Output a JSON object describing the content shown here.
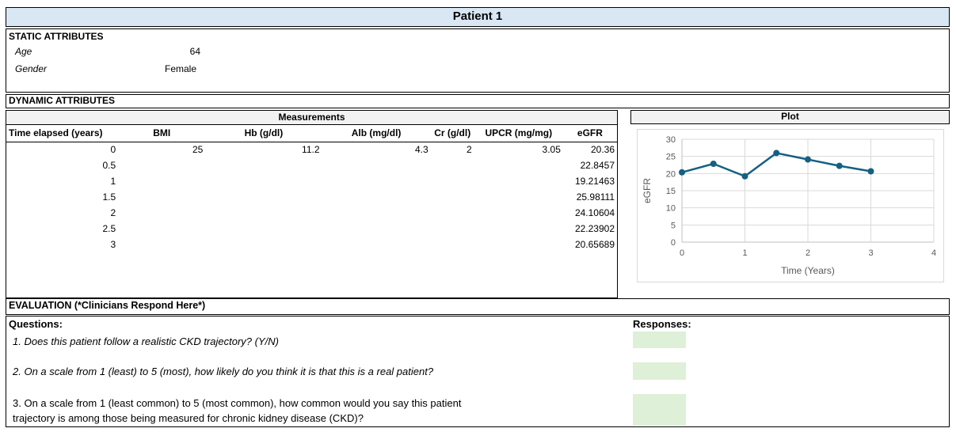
{
  "window": {
    "title": "Patient 1"
  },
  "static_attributes": {
    "section_label": "STATIC ATTRIBUTES",
    "rows": [
      {
        "label": "Age",
        "value": "64"
      },
      {
        "label": "Gender",
        "value": "Female"
      }
    ]
  },
  "dynamic_attributes": {
    "section_label": "DYNAMIC ATTRIBUTES"
  },
  "measurements": {
    "section_label": "Measurements",
    "columns": [
      "Time elapsed (years)",
      "BMI",
      "Hb (g/dl)",
      "Alb (mg/dl)",
      "Cr (g/dl)",
      "UPCR (mg/mg)",
      "eGFR"
    ],
    "rows": [
      [
        "0",
        "25",
        "11.2",
        "4.3",
        "2",
        "3.05",
        "20.36"
      ],
      [
        "0.5",
        "",
        "",
        "",
        "",
        "",
        "22.8457"
      ],
      [
        "1",
        "",
        "",
        "",
        "",
        "",
        "19.21463"
      ],
      [
        "1.5",
        "",
        "",
        "",
        "",
        "",
        "25.98111"
      ],
      [
        "2",
        "",
        "",
        "",
        "",
        "",
        "24.10604"
      ],
      [
        "2.5",
        "",
        "",
        "",
        "",
        "",
        "22.23902"
      ],
      [
        "3",
        "",
        "",
        "",
        "",
        "",
        "20.65689"
      ]
    ]
  },
  "plot": {
    "section_label": "Plot"
  },
  "chart_data": {
    "type": "line",
    "series": [
      {
        "name": "eGFR",
        "x": [
          0,
          0.5,
          1,
          1.5,
          2,
          2.5,
          3
        ],
        "y": [
          20.36,
          22.8457,
          19.21463,
          25.98111,
          24.10604,
          22.23902,
          20.65689
        ]
      }
    ],
    "title": "",
    "xlabel": "Time (Years)",
    "ylabel": "eGFR",
    "xlim": [
      0,
      4
    ],
    "ylim": [
      0,
      30
    ],
    "x_ticks": [
      0,
      1,
      2,
      3,
      4
    ],
    "y_ticks": [
      0,
      5,
      10,
      15,
      20,
      25,
      30
    ],
    "grid": true,
    "legend": false
  },
  "evaluation": {
    "section_label": "EVALUATION (*Clinicians Respond Here*)",
    "questions_label": "Questions:",
    "responses_label": "Responses:",
    "questions": [
      {
        "text": "1. Does this patient follow a realistic CKD trajectory? (Y/N)",
        "style": "italic"
      },
      {
        "text": "2. On a scale from 1 (least) to 5 (most), how likely do you think it is that this is a real patient?",
        "style": "italic"
      },
      {
        "text": "3. On a scale from 1 (least common) to 5 (most common), how common would you say this patient trajectory is among those being measured for chronic kidney disease (CKD)?",
        "style": "normal"
      }
    ],
    "responses": [
      "",
      "",
      ""
    ]
  },
  "colors": {
    "header_blue": "#D9E6F4",
    "band_gray": "#F2F2F2",
    "response_green": "#DEF0D8",
    "chart_line": "#156082",
    "chart_grid": "#D9D9D9",
    "chart_axis": "#BFBFBF",
    "chart_text": "#595959"
  }
}
